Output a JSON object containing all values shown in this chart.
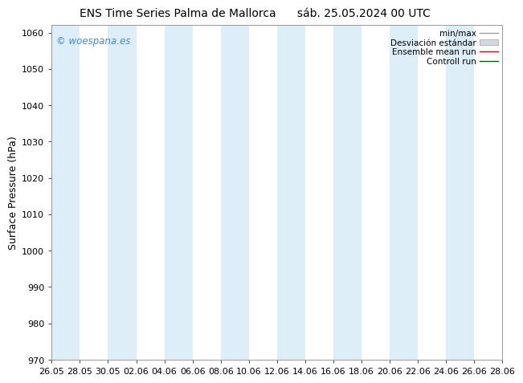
{
  "title_left": "ENS Time Series Palma de Mallorca",
  "title_right": "sáb. 25.05.2024 00 UTC",
  "ylabel": "Surface Pressure (hPa)",
  "ylim": [
    970,
    1062
  ],
  "yticks": [
    970,
    980,
    990,
    1000,
    1010,
    1020,
    1030,
    1040,
    1050,
    1060
  ],
  "xtick_labels": [
    "26.05",
    "28.05",
    "30.05",
    "02.06",
    "04.06",
    "06.06",
    "08.06",
    "10.06",
    "12.06",
    "14.06",
    "16.06",
    "18.06",
    "20.06",
    "22.06",
    "24.06",
    "26.06",
    "28.06"
  ],
  "watermark": "© woespana.es",
  "watermark_color": "#4488cc",
  "background_color": "#ffffff",
  "band_color": "#ddeef8",
  "legend_items": [
    "min/max",
    "Desviación estándar",
    "Ensemble mean run",
    "Controll run"
  ],
  "legend_line_color": "#a0a0a0",
  "legend_patch_color": "#d0d8e0",
  "legend_ensemble_color": "#dd0000",
  "legend_control_color": "#006600",
  "title_fontsize": 10,
  "ylabel_fontsize": 9,
  "tick_fontsize": 8,
  "legend_fontsize": 7.5,
  "watermark_fontsize": 8.5
}
